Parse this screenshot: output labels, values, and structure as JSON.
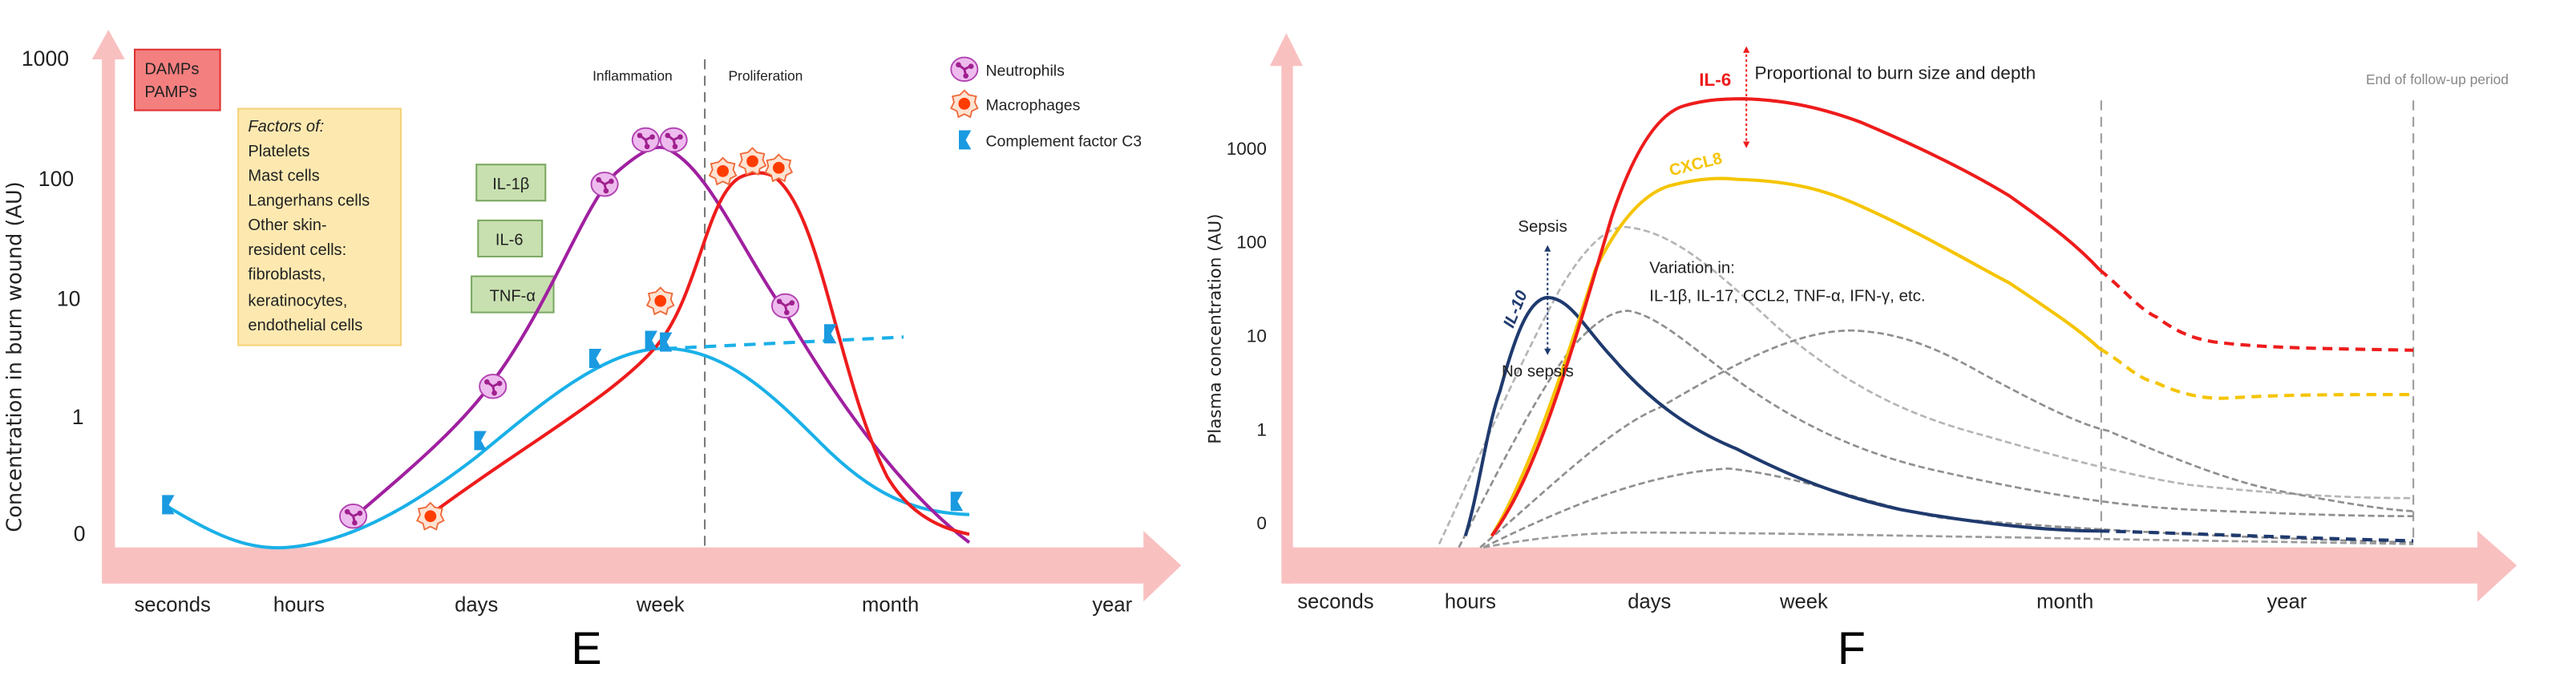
{
  "colors": {
    "axis_pink": "#f9c0c0",
    "neutrophils": "#a020a0",
    "macrophages": "#ee1c1c",
    "complement_c3": "#1ab0e8",
    "il6": "#ee1c1c",
    "cxcl8": "#f5c400",
    "il10": "#1f3a6e",
    "variation": "#8a8a8a",
    "damps_box": "#f47f7f",
    "factors_box": "#fde9b0",
    "cytokine_box": "#c8e0b0"
  },
  "panel_e": {
    "label": "E",
    "y_axis_label": "Concentration in burn wound (AU)",
    "y_ticks": [
      "1000",
      "100",
      "10",
      "1",
      "0"
    ],
    "x_ticks": [
      "seconds",
      "hours",
      "days",
      "week",
      "month",
      "year"
    ],
    "phases": {
      "left": "Inflammation",
      "right": "Proliferation"
    },
    "damps_box": [
      "DAMPs",
      "PAMPs"
    ],
    "factors_box": {
      "title": "Factors of:",
      "lines": [
        "Platelets",
        "Mast cells",
        "Langerhans cells",
        "Other skin-",
        "resident cells:",
        "fibroblasts,",
        "keratinocytes,",
        "endothelial cells"
      ]
    },
    "cytokines": [
      "IL-1β",
      "IL-6",
      "TNF-α"
    ],
    "legend": [
      {
        "icon": "neutrophil-icon",
        "label": "Neutrophils"
      },
      {
        "icon": "macrophage-icon",
        "label": "Macrophages"
      },
      {
        "icon": "complement-c3-icon",
        "label": "Complement factor C3"
      }
    ]
  },
  "panel_f": {
    "label": "F",
    "y_axis_label": "Plasma concentration (AU)",
    "y_ticks": [
      "1000",
      "100",
      "10",
      "1",
      "0"
    ],
    "x_ticks": [
      "seconds",
      "hours",
      "days",
      "week",
      "month",
      "year"
    ],
    "series_labels": {
      "il6": "IL-6",
      "cxcl8": "CXCL8",
      "il10": "IL-10"
    },
    "il6_note": "Proportional to burn size and depth",
    "sepsis": "Sepsis",
    "no_sepsis": "No sepsis",
    "variation_title": "Variation in:",
    "variation_list": "IL-1β, IL-17, CCL2, TNF-α, IFN-γ, etc.",
    "follow_up": "End of follow-up period"
  }
}
